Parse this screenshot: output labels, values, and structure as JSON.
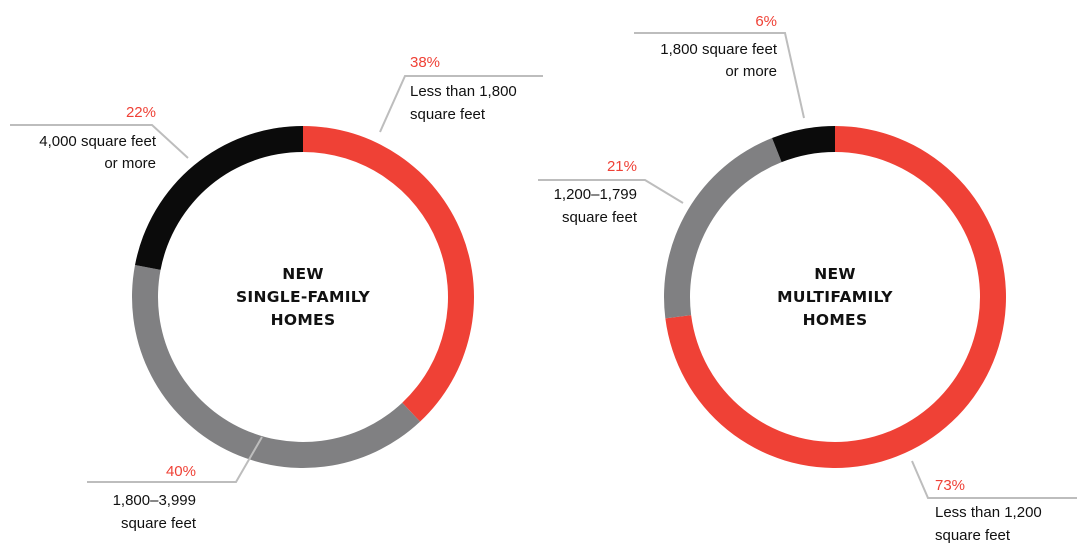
{
  "colors": {
    "red": "#ef4136",
    "gray": "#808082",
    "black": "#0b0b0b",
    "pct_text": "#ef4136",
    "leader": "#bdbdbd"
  },
  "chart_data": [
    {
      "type": "pie",
      "center_label": [
        "NEW",
        "SINGLE-FAMILY",
        "HOMES"
      ],
      "slices": [
        {
          "label": [
            "Less than 1,800",
            "square feet"
          ],
          "value_label": "38%",
          "value": 38,
          "color": "#ef4136"
        },
        {
          "label": [
            "1,800–3,999",
            "square feet"
          ],
          "value_label": "40%",
          "value": 40,
          "color": "#808082"
        },
        {
          "label": [
            "4,000 square feet",
            "or more"
          ],
          "value_label": "22%",
          "value": 22,
          "color": "#0b0b0b"
        }
      ]
    },
    {
      "type": "pie",
      "center_label": [
        "NEW",
        "MULTIFAMILY",
        "HOMES"
      ],
      "slices": [
        {
          "label": [
            "Less than 1,200",
            "square feet"
          ],
          "value_label": "73%",
          "value": 73,
          "color": "#ef4136"
        },
        {
          "label": [
            "1,200–1,799",
            "square feet"
          ],
          "value_label": "21%",
          "value": 21,
          "color": "#808082"
        },
        {
          "label": [
            "1,800 square feet",
            "or more"
          ],
          "value_label": "6%",
          "value": 6,
          "color": "#0b0b0b"
        }
      ]
    }
  ]
}
